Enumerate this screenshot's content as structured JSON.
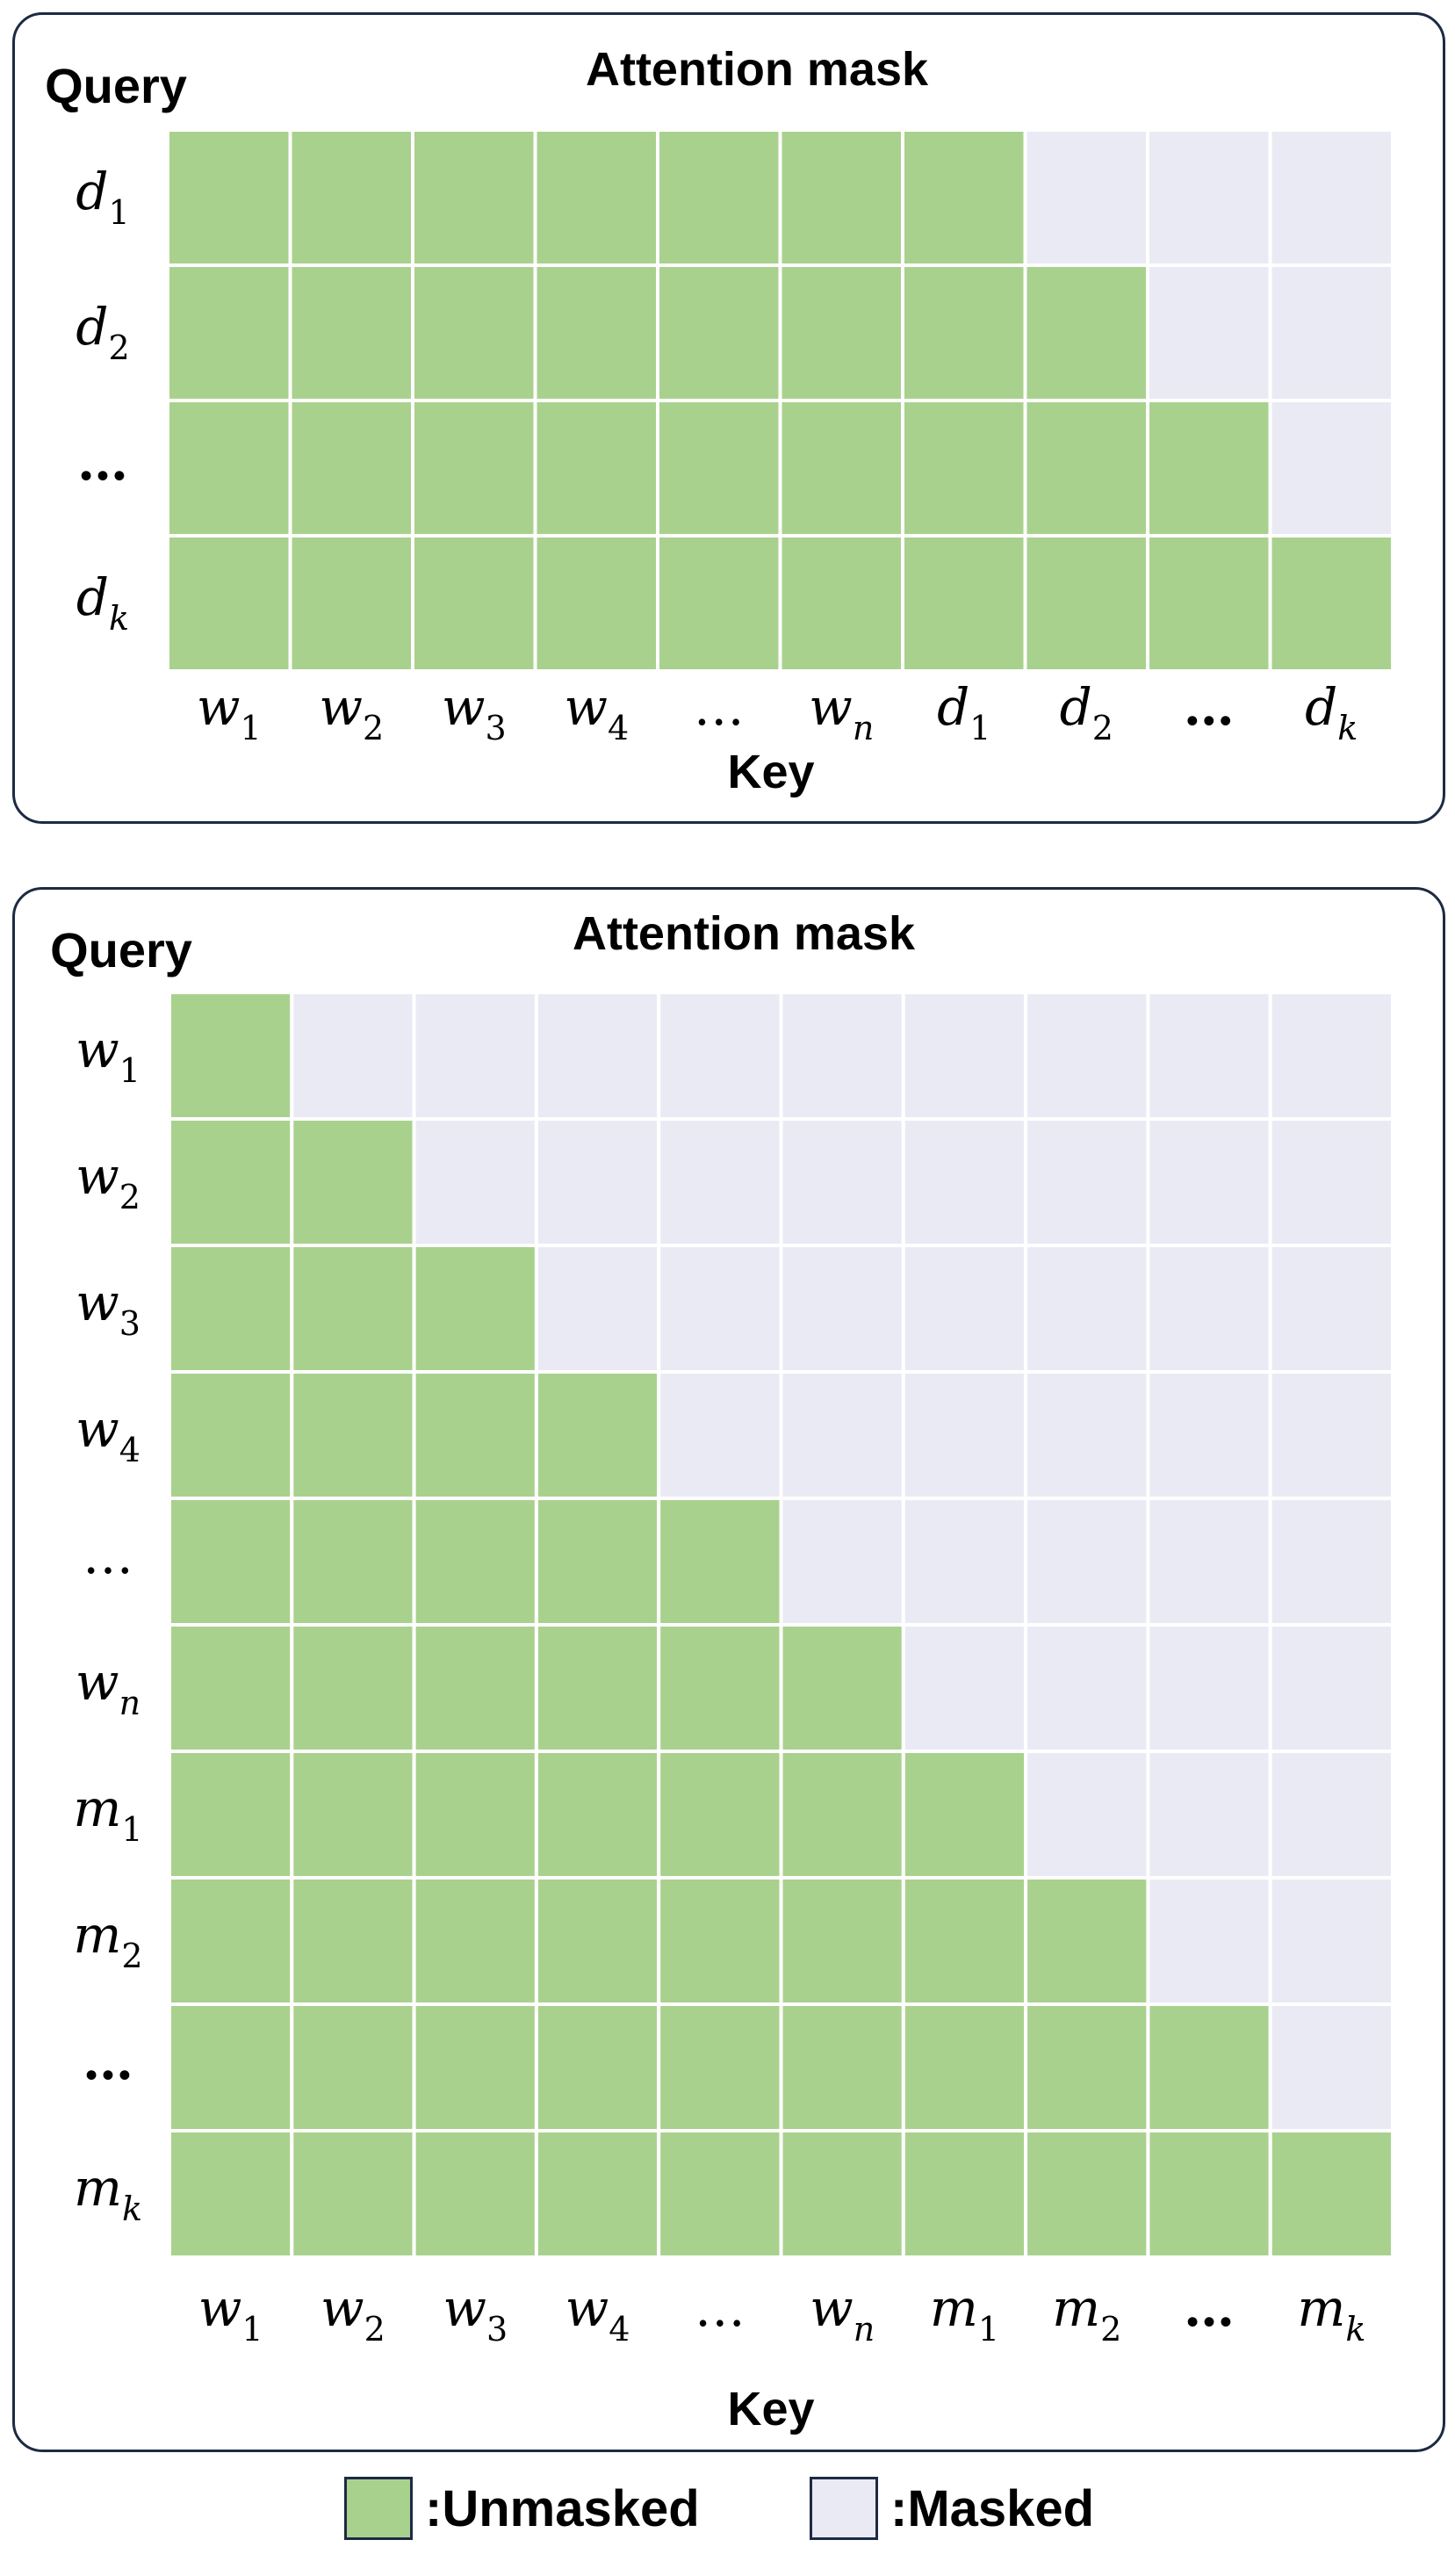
{
  "colors": {
    "unmasked": "#a9d18e",
    "masked": "#e9eaf4",
    "grid_line": "#ffffff",
    "border": "#1d2a44"
  },
  "panels": [
    {
      "title": "Attention mask",
      "row_axis_label": "Query",
      "col_axis_label": "Key",
      "rows": [
        {
          "base": "d",
          "sub": "1"
        },
        {
          "base": "d",
          "sub": "2"
        },
        {
          "base": "…",
          "sub": "",
          "bold": true
        },
        {
          "base": "d",
          "sub": "k"
        }
      ],
      "cols": [
        {
          "base": "w",
          "sub": "1"
        },
        {
          "base": "w",
          "sub": "2"
        },
        {
          "base": "w",
          "sub": "3"
        },
        {
          "base": "w",
          "sub": "4"
        },
        {
          "base": "…",
          "sub": ""
        },
        {
          "base": "w",
          "sub": "n"
        },
        {
          "base": "d",
          "sub": "1"
        },
        {
          "base": "d",
          "sub": "2"
        },
        {
          "base": "…",
          "sub": "",
          "bold": true
        },
        {
          "base": "d",
          "sub": "k"
        }
      ],
      "mask": [
        [
          1,
          1,
          1,
          1,
          1,
          1,
          1,
          0,
          0,
          0
        ],
        [
          1,
          1,
          1,
          1,
          1,
          1,
          1,
          1,
          0,
          0
        ],
        [
          1,
          1,
          1,
          1,
          1,
          1,
          1,
          1,
          1,
          0
        ],
        [
          1,
          1,
          1,
          1,
          1,
          1,
          1,
          1,
          1,
          1
        ]
      ]
    },
    {
      "title": "Attention mask",
      "row_axis_label": "Query",
      "col_axis_label": "Key",
      "rows": [
        {
          "base": "w",
          "sub": "1"
        },
        {
          "base": "w",
          "sub": "2"
        },
        {
          "base": "w",
          "sub": "3"
        },
        {
          "base": "w",
          "sub": "4"
        },
        {
          "base": "…",
          "sub": ""
        },
        {
          "base": "w",
          "sub": "n"
        },
        {
          "base": "m",
          "sub": "1"
        },
        {
          "base": "m",
          "sub": "2"
        },
        {
          "base": "…",
          "sub": "",
          "bold": true
        },
        {
          "base": "m",
          "sub": "k"
        }
      ],
      "cols": [
        {
          "base": "w",
          "sub": "1"
        },
        {
          "base": "w",
          "sub": "2"
        },
        {
          "base": "w",
          "sub": "3"
        },
        {
          "base": "w",
          "sub": "4"
        },
        {
          "base": "…",
          "sub": ""
        },
        {
          "base": "w",
          "sub": "n"
        },
        {
          "base": "m",
          "sub": "1"
        },
        {
          "base": "m",
          "sub": "2"
        },
        {
          "base": "…",
          "sub": "",
          "bold": true
        },
        {
          "base": "m",
          "sub": "k"
        }
      ],
      "mask": [
        [
          1,
          0,
          0,
          0,
          0,
          0,
          0,
          0,
          0,
          0
        ],
        [
          1,
          1,
          0,
          0,
          0,
          0,
          0,
          0,
          0,
          0
        ],
        [
          1,
          1,
          1,
          0,
          0,
          0,
          0,
          0,
          0,
          0
        ],
        [
          1,
          1,
          1,
          1,
          0,
          0,
          0,
          0,
          0,
          0
        ],
        [
          1,
          1,
          1,
          1,
          1,
          0,
          0,
          0,
          0,
          0
        ],
        [
          1,
          1,
          1,
          1,
          1,
          1,
          0,
          0,
          0,
          0
        ],
        [
          1,
          1,
          1,
          1,
          1,
          1,
          1,
          0,
          0,
          0
        ],
        [
          1,
          1,
          1,
          1,
          1,
          1,
          1,
          1,
          0,
          0
        ],
        [
          1,
          1,
          1,
          1,
          1,
          1,
          1,
          1,
          1,
          0
        ],
        [
          1,
          1,
          1,
          1,
          1,
          1,
          1,
          1,
          1,
          1
        ]
      ]
    }
  ],
  "legend": {
    "unmasked_label": ":Unmasked",
    "masked_label": ":Masked"
  }
}
